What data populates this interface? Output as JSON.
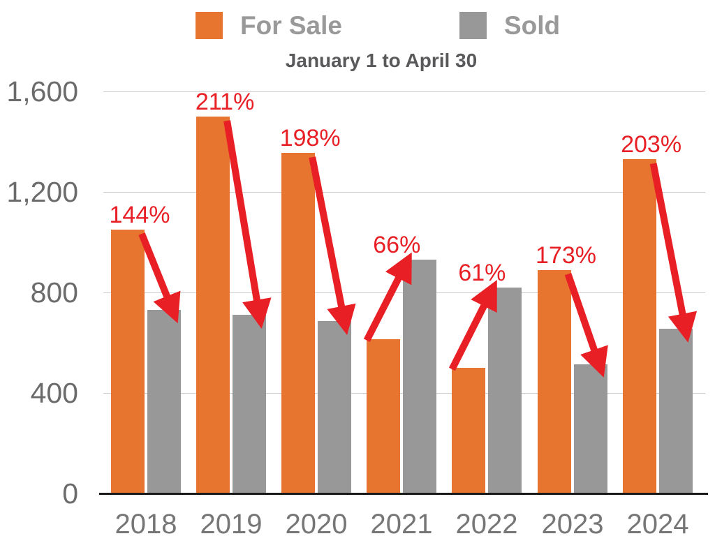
{
  "legend": {
    "items": [
      {
        "label": "For Sale",
        "color": "#E7742F"
      },
      {
        "label": "Sold",
        "color": "#989898"
      }
    ]
  },
  "subtitle": "January 1 to April 30",
  "chart_data": {
    "type": "bar",
    "title": "",
    "subtitle": "January 1 to April 30",
    "categories": [
      "2018",
      "2019",
      "2020",
      "2021",
      "2022",
      "2023",
      "2024"
    ],
    "series": [
      {
        "name": "For Sale",
        "color": "#E7742F",
        "values": [
          1050,
          1500,
          1355,
          615,
          500,
          890,
          1330
        ]
      },
      {
        "name": "Sold",
        "color": "#989898",
        "values": [
          730,
          710,
          685,
          930,
          820,
          515,
          655
        ]
      }
    ],
    "ratio_annotations": [
      {
        "category": "2018",
        "label": "144%",
        "direction": "down"
      },
      {
        "category": "2019",
        "label": "211%",
        "direction": "down"
      },
      {
        "category": "2020",
        "label": "198%",
        "direction": "down"
      },
      {
        "category": "2021",
        "label": "66%",
        "direction": "up"
      },
      {
        "category": "2022",
        "label": "61%",
        "direction": "up"
      },
      {
        "category": "2023",
        "label": "173%",
        "direction": "down"
      },
      {
        "category": "2024",
        "label": "203%",
        "direction": "down"
      }
    ],
    "ylim": [
      0,
      1600
    ],
    "yticks": [
      {
        "value": 1600,
        "label": "1,600"
      },
      {
        "value": 1200,
        "label": "1,200"
      },
      {
        "value": 800,
        "label": "800"
      },
      {
        "value": 400,
        "label": "400"
      },
      {
        "value": 0,
        "label": "0"
      }
    ],
    "grid": true,
    "legend_position": "top",
    "annotation_color": "#E82026",
    "colors": {
      "grid": "#CCCCCC",
      "axis_line": "#1A1A1A",
      "ytick_text": "#6B6B6B",
      "xtick_text": "#767676",
      "subtitle_text": "#59595B",
      "legend_text": "#999999"
    }
  }
}
